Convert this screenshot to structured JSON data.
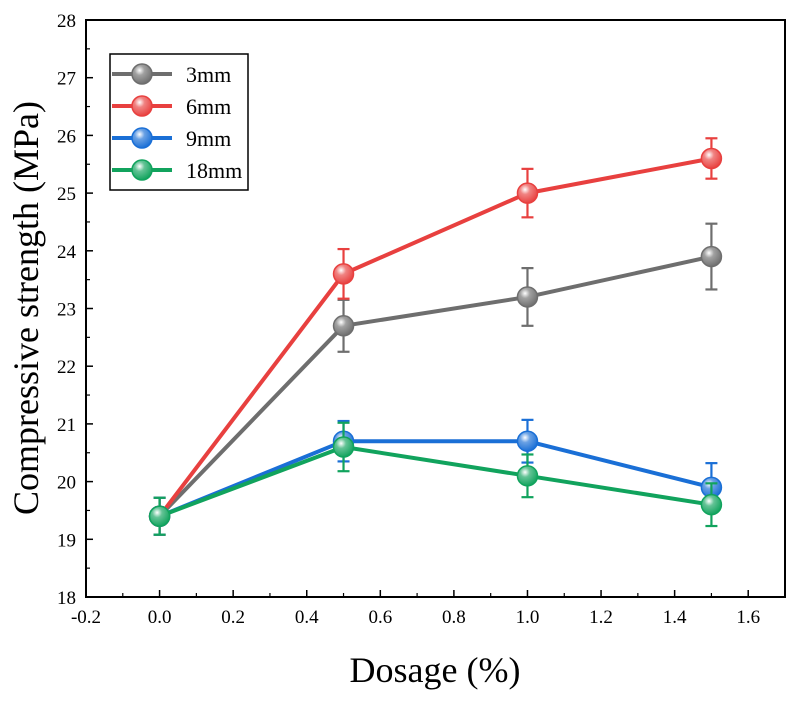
{
  "chart_data": {
    "type": "line",
    "title": "",
    "xlabel": "Dosage (%)",
    "ylabel": "Compressive strength (MPa)",
    "xlim": [
      -0.2,
      1.7
    ],
    "ylim": [
      18,
      28
    ],
    "xticks": [
      -0.2,
      0.0,
      0.2,
      0.4,
      0.6,
      0.8,
      1.0,
      1.2,
      1.4,
      1.6
    ],
    "xtick_labels": [
      "-0.2",
      "0.0",
      "0.2",
      "0.4",
      "0.6",
      "0.8",
      "1.0",
      "1.2",
      "1.4",
      "1.6"
    ],
    "yticks": [
      18,
      19,
      20,
      21,
      22,
      23,
      24,
      25,
      26,
      27,
      28
    ],
    "ytick_labels": [
      "18",
      "19",
      "20",
      "21",
      "22",
      "23",
      "24",
      "25",
      "26",
      "27",
      "28"
    ],
    "x": [
      0.0,
      0.5,
      1.0,
      1.5
    ],
    "legend_position": "top-left",
    "grid": false,
    "series": [
      {
        "name": "3mm",
        "color": "#6e6e6e",
        "values": [
          19.4,
          22.7,
          23.2,
          23.9
        ],
        "errors": [
          0.32,
          0.45,
          0.5,
          0.57
        ]
      },
      {
        "name": "6mm",
        "color": "#e8403f",
        "values": [
          19.4,
          23.6,
          25.0,
          25.6
        ],
        "errors": [
          0.32,
          0.43,
          0.42,
          0.35
        ]
      },
      {
        "name": "9mm",
        "color": "#1a6fd6",
        "values": [
          19.4,
          20.7,
          20.7,
          19.9
        ],
        "errors": [
          0.32,
          0.35,
          0.37,
          0.42
        ]
      },
      {
        "name": "18mm",
        "color": "#11a35d",
        "values": [
          19.4,
          20.6,
          20.1,
          19.6
        ],
        "errors": [
          0.32,
          0.42,
          0.37,
          0.37
        ]
      }
    ]
  }
}
